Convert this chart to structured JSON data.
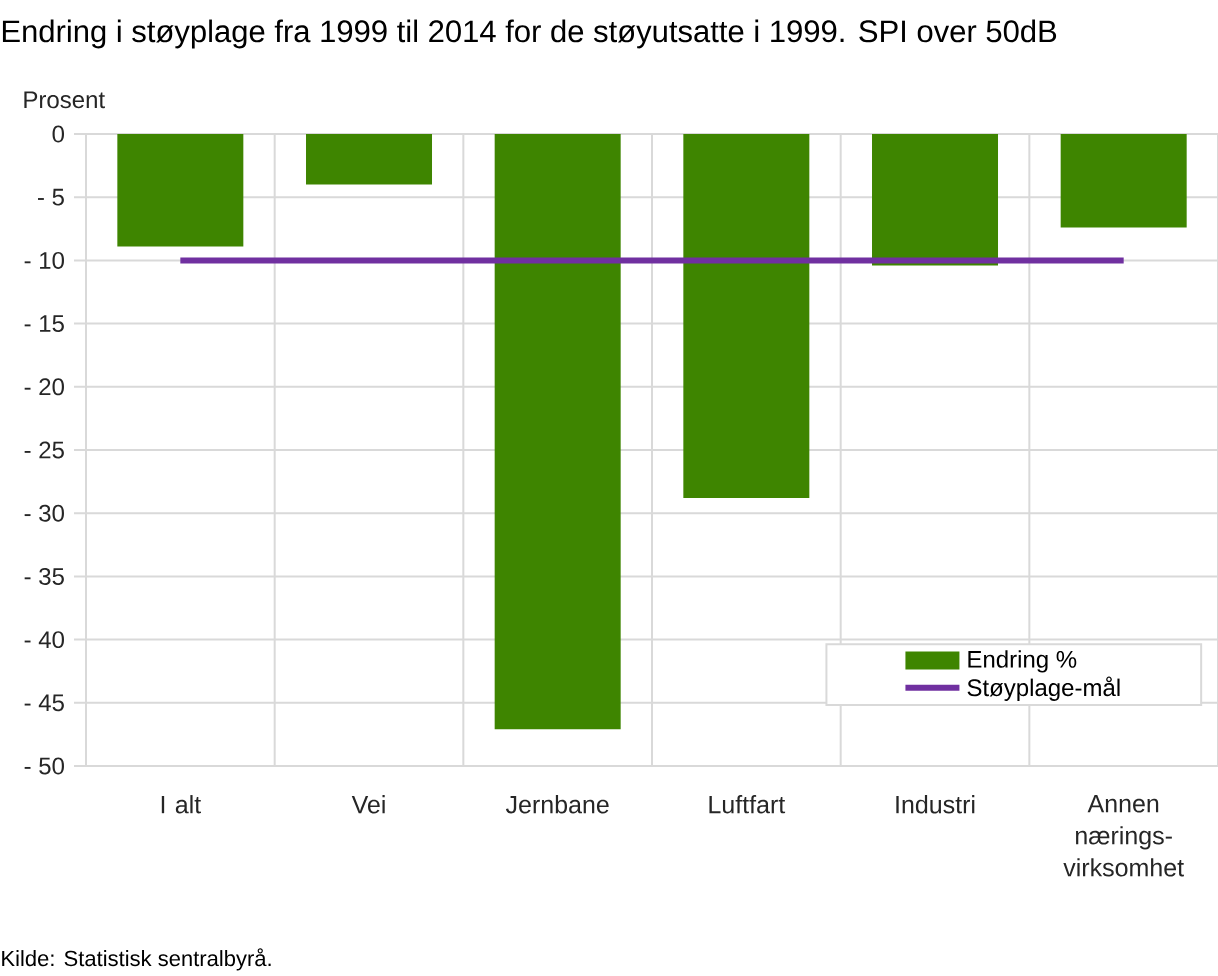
{
  "chart_data": {
    "type": "bar",
    "title": "Endring i støyplage fra 1999 til 2014 for de støyutsatte i 1999. SPI over 50dB",
    "ylabel": "Prosent",
    "categories": [
      "I alt",
      "Vei",
      "Jernbane",
      "Luftfart",
      "Industri",
      "Annen nærings-virksomhet"
    ],
    "series": [
      {
        "name": "Endring %",
        "color": "#3e8500",
        "values": [
          -8.9,
          -4.0,
          -47.1,
          -28.8,
          -10.4,
          -7.4
        ]
      },
      {
        "name": "Støyplage-mål",
        "type": "line",
        "color": "#7030a0",
        "values": [
          -10,
          -10,
          -10,
          -10,
          -10,
          -10
        ]
      }
    ],
    "ylim": [
      -50,
      0
    ],
    "yticks": [
      0,
      {
        "value": -5,
        "label": "- 5"
      },
      {
        "value": -10,
        "label": "- 10"
      },
      {
        "value": -15,
        "label": "- 15"
      },
      {
        "value": -20,
        "label": "- 20"
      },
      {
        "value": -25,
        "label": "- 25"
      },
      {
        "value": -30,
        "label": "- 30"
      },
      {
        "value": -35,
        "label": "- 35"
      },
      {
        "value": -40,
        "label": "- 40"
      },
      {
        "value": -45,
        "label": "- 45"
      },
      {
        "value": -50,
        "label": "- 50"
      }
    ],
    "grid": true,
    "legend": "bottom right",
    "annotations": [
      "Kilde: Statistisk sentralbyrå."
    ]
  }
}
